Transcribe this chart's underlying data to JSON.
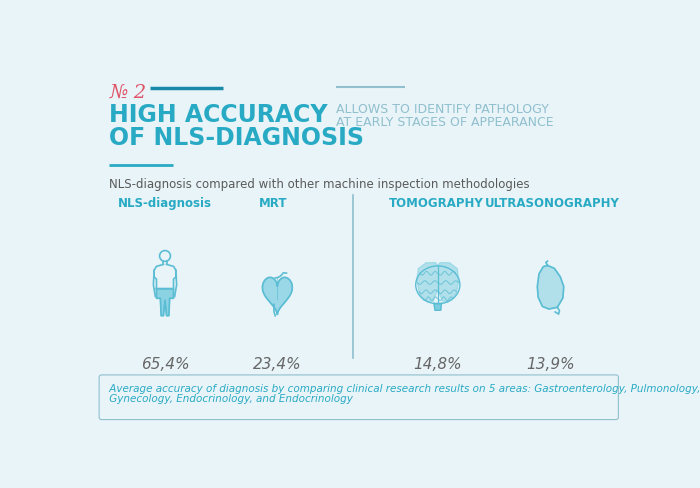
{
  "bg_color": "#e8f4f8",
  "title_main_line1": "HIGH ACCURACY",
  "title_main_line2": "OF NLS-DIAGNOSIS",
  "title_sub_line1": "ALLOWS TO IDENTIFY PATHOLOGY",
  "title_sub_line2": "AT EARLY STAGES OF APPEARANCE",
  "subtitle2": "NLS-diagnosis compared with other machine inspection methodologies",
  "categories": [
    "NLS-diagnosis",
    "MRT",
    "TOMOGRAPHY",
    "ULTRASONOGRAPHY"
  ],
  "values": [
    "65,4%",
    "23,4%",
    "14,8%",
    "13,9%"
  ],
  "footer_line1": " Average accuracy of diagnosis by comparing clinical research results on 5 areas: Gastroenterology, Pulmonology,",
  "footer_line2": " Gynecology, Endocrinology, and Endocrinology",
  "color_teal": "#29aac4",
  "color_dark_teal": "#1b8aaa",
  "color_red": "#e0546a",
  "color_light_blue": "#7bcde0",
  "color_outline": "#5bbdd4",
  "color_gray_text": "#90bfce",
  "color_dark_text": "#5a5a5a",
  "color_value_text": "#666666"
}
